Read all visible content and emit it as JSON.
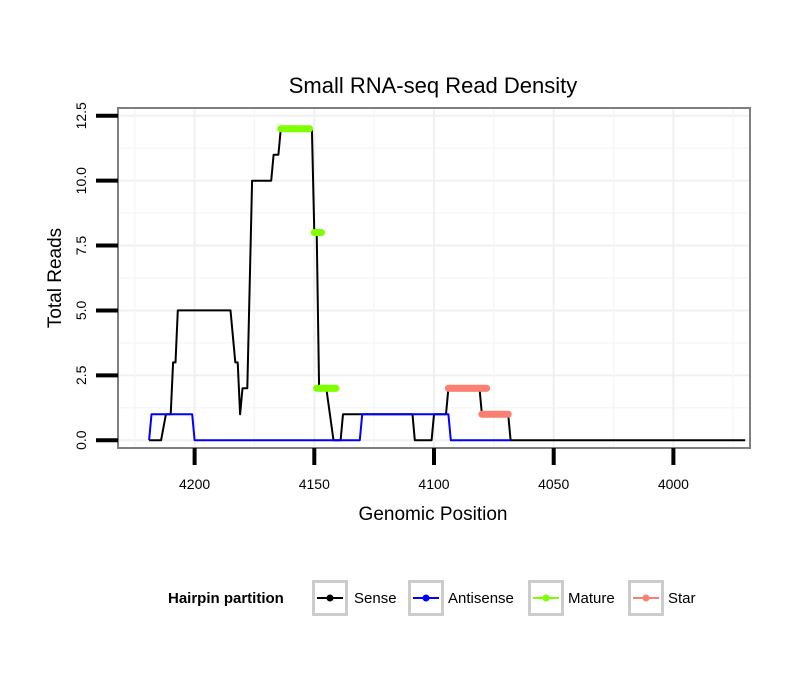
{
  "chart_data": {
    "type": "line",
    "title": "Small RNA-seq Read Density",
    "xlabel": "Genomic Position",
    "ylabel": "Total Reads",
    "xlim": [
      4232,
      3968
    ],
    "ylim": [
      -0.3,
      12.8
    ],
    "x_reversed": true,
    "xticks": [
      4200,
      4150,
      4100,
      4050,
      4000
    ],
    "xtick_labels": [
      "4200",
      "4150",
      "4100",
      "4050",
      "4000"
    ],
    "yticks": [
      0,
      2.5,
      5,
      7.5,
      10,
      12.5
    ],
    "ytick_labels": [
      "0.0",
      "2.5",
      "5.0",
      "7.5",
      "10.0",
      "12.5"
    ],
    "grid": true,
    "legend": {
      "title": "Hairpin partition",
      "position": "bottom",
      "entries": [
        {
          "name": "Sense",
          "color": "#000000"
        },
        {
          "name": "Antisense",
          "color": "#0000ff"
        },
        {
          "name": "Mature",
          "color": "#7fff00"
        },
        {
          "name": "Star",
          "color": "#fa8072"
        }
      ]
    },
    "series": [
      {
        "name": "Sense",
        "color": "#000000",
        "style": "line",
        "points": [
          [
            4219,
            0
          ],
          [
            4214,
            0
          ],
          [
            4212,
            1
          ],
          [
            4210,
            1
          ],
          [
            4209,
            3
          ],
          [
            4208,
            3
          ],
          [
            4207,
            5
          ],
          [
            4193,
            5
          ],
          [
            4185,
            5
          ],
          [
            4183,
            3
          ],
          [
            4182,
            3
          ],
          [
            4181,
            1
          ],
          [
            4180,
            2
          ],
          [
            4178,
            2
          ],
          [
            4176,
            10
          ],
          [
            4168,
            10
          ],
          [
            4167,
            11
          ],
          [
            4165,
            11
          ],
          [
            4164,
            12
          ],
          [
            4156,
            12
          ],
          [
            4151,
            12
          ],
          [
            4150,
            8
          ],
          [
            4149,
            8
          ],
          [
            4148,
            2
          ],
          [
            4145,
            2
          ],
          [
            4142,
            0
          ],
          [
            4139,
            0
          ],
          [
            4138,
            1
          ],
          [
            4131,
            1
          ],
          [
            4109,
            1
          ],
          [
            4108,
            0
          ],
          [
            4101,
            0
          ],
          [
            4100,
            1
          ],
          [
            4097,
            1
          ],
          [
            4095,
            1
          ],
          [
            4094,
            2
          ],
          [
            4081,
            2
          ],
          [
            4080,
            1
          ],
          [
            4069,
            1
          ],
          [
            4068,
            0
          ],
          [
            3970,
            0
          ]
        ]
      },
      {
        "name": "Antisense",
        "color": "#0000ff",
        "style": "line",
        "points": [
          [
            4219,
            0
          ],
          [
            4218,
            1
          ],
          [
            4201,
            1
          ],
          [
            4200,
            0
          ],
          [
            4131,
            0
          ],
          [
            4130,
            1
          ],
          [
            4094,
            1
          ],
          [
            4093,
            0
          ],
          [
            4068,
            0
          ]
        ]
      },
      {
        "name": "Mature",
        "color": "#7fff00",
        "style": "segments",
        "segments": [
          {
            "x": [
              4164,
              4152
            ],
            "y": 12
          },
          {
            "x": [
              4150,
              4147
            ],
            "y": 8
          },
          {
            "x": [
              4149,
              4141
            ],
            "y": 2
          }
        ]
      },
      {
        "name": "Star",
        "color": "#fa8072",
        "style": "segments",
        "segments": [
          {
            "x": [
              4094,
              4078
            ],
            "y": 2
          },
          {
            "x": [
              4080,
              4069
            ],
            "y": 1
          }
        ]
      }
    ]
  }
}
